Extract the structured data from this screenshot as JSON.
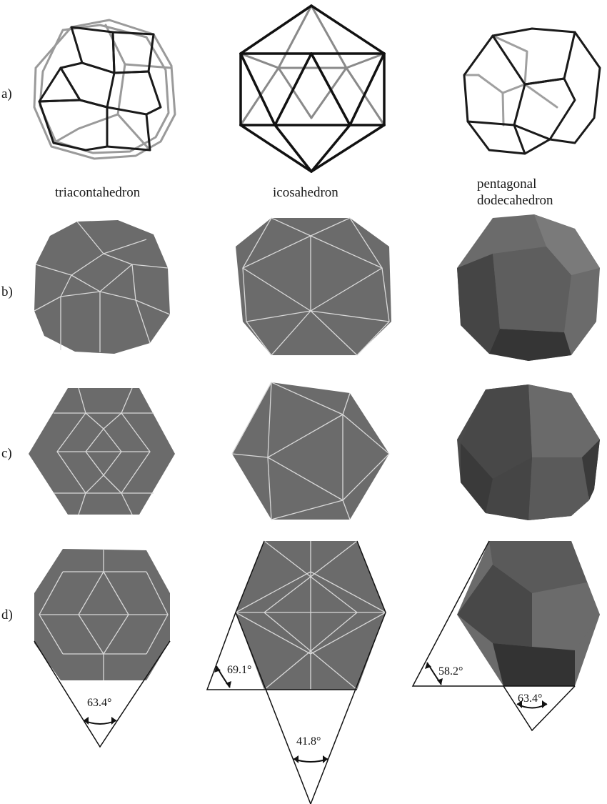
{
  "figure": {
    "row_labels": [
      "a)",
      "b)",
      "c)",
      "d)"
    ],
    "columns": [
      {
        "name_lines": [
          "triacontahedron"
        ]
      },
      {
        "name_lines": [
          "icosahedron"
        ]
      },
      {
        "name_lines": [
          "pentagonal",
          "dodecahedron"
        ]
      }
    ],
    "angles": {
      "triacontahedron_bottom": "63.4°",
      "icosahedron_side": "69.1°",
      "icosahedron_bottom": "41.8°",
      "dodecahedron_side": "58.2°",
      "dodecahedron_bottom": "63.4°"
    }
  },
  "colors": {
    "solid_face": "#6b6b6b",
    "solid_dark": "#454545",
    "solid_darker": "#333333",
    "solid_light": "#7a7a7a",
    "edge_line": "#d8d8d8",
    "wire_front": "#111111",
    "wire_back": "#9a9a9a"
  }
}
